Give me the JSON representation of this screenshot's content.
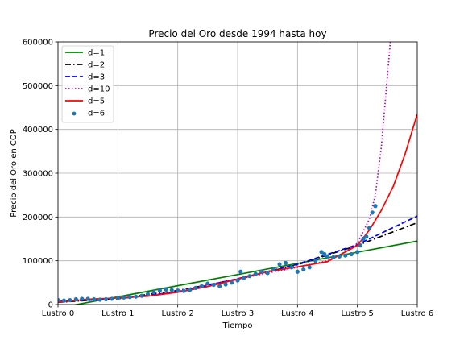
{
  "chart_data": {
    "type": "line",
    "title": "Precio del Oro desde 1994 hasta hoy",
    "xlabel": "Tiempo",
    "ylabel": "Precio del Oro en COP",
    "xlim": [
      0,
      6
    ],
    "ylim": [
      0,
      600000
    ],
    "x_ticks": [
      0,
      1,
      2,
      3,
      4,
      5,
      6
    ],
    "x_tick_labels": [
      "Lustro 0",
      "Lustro 1",
      "Lustro 2",
      "Lustro 3",
      "Lustro 4",
      "Lustro 5",
      "Lustro 6"
    ],
    "y_ticks": [
      0,
      100000,
      200000,
      300000,
      400000,
      500000,
      600000
    ],
    "y_tick_labels": [
      "0",
      "100000",
      "200000",
      "300000",
      "400000",
      "500000",
      "600000"
    ],
    "grid": true,
    "legend_position": "top-left",
    "series": [
      {
        "name": "d=1",
        "kind": "line",
        "color": "#008000",
        "dash": "solid",
        "x": [
          0,
          1,
          2,
          3,
          4,
          5,
          6
        ],
        "y": [
          -8000,
          17500,
          43000,
          68500,
          94000,
          119500,
          145000
        ]
      },
      {
        "name": "d=2",
        "kind": "line",
        "color": "#000000",
        "dash": "dashdot",
        "x": [
          0,
          1,
          2,
          3,
          4,
          5,
          6
        ],
        "y": [
          5000,
          14000,
          32000,
          58000,
          91000,
          135000,
          187000
        ]
      },
      {
        "name": "d=3",
        "kind": "line",
        "color": "#0000ff",
        "dash": "dashed",
        "x": [
          0,
          1,
          2,
          3,
          4,
          5,
          6
        ],
        "y": [
          7000,
          13000,
          29000,
          59000,
          92000,
          137000,
          202000
        ]
      },
      {
        "name": "d=10",
        "kind": "line",
        "color": "#bf00bf",
        "dash": "dotted",
        "x": [
          0,
          0.5,
          1,
          1.5,
          2,
          2.5,
          3,
          3.5,
          4,
          4.5,
          4.8,
          5,
          5.2,
          5.3,
          5.4,
          5.5,
          5.55
        ],
        "y": [
          8000,
          12000,
          14000,
          20000,
          30000,
          45000,
          58000,
          72000,
          85000,
          100000,
          120000,
          140000,
          195000,
          250000,
          360000,
          520000,
          600000
        ]
      },
      {
        "name": "d=5",
        "kind": "line",
        "color": "#ff0000",
        "dash": "solid",
        "x": [
          0,
          0.5,
          1,
          1.5,
          2,
          2.5,
          3,
          3.5,
          4,
          4.5,
          5,
          5.2,
          5.4,
          5.6,
          5.8,
          6
        ],
        "y": [
          5000,
          12000,
          15000,
          19000,
          28000,
          41000,
          58000,
          75000,
          86000,
          98000,
          135000,
          170000,
          215000,
          270000,
          345000,
          435000
        ]
      },
      {
        "name": "d=6",
        "kind": "scatter",
        "color": "#1f77b4",
        "x": [
          0,
          0.1,
          0.2,
          0.3,
          0.4,
          0.5,
          0.6,
          0.7,
          0.8,
          0.9,
          1.0,
          1.1,
          1.2,
          1.3,
          1.4,
          1.5,
          1.6,
          1.7,
          1.8,
          1.9,
          2.0,
          2.1,
          2.2,
          2.3,
          2.4,
          2.5,
          2.6,
          2.7,
          2.8,
          2.9,
          3.0,
          3.05,
          3.1,
          3.2,
          3.3,
          3.4,
          3.5,
          3.6,
          3.7,
          3.8,
          3.9,
          4.0,
          4.1,
          4.2,
          4.3,
          4.4,
          4.45,
          4.5,
          4.6,
          4.7,
          4.8,
          4.9,
          5.0,
          5.05,
          5.1,
          5.15,
          5.2,
          5.25,
          5.3
        ],
        "y": [
          10000,
          9000,
          10000,
          12000,
          13000,
          13000,
          12000,
          11000,
          12000,
          13000,
          15000,
          16000,
          17000,
          18000,
          20000,
          24000,
          28000,
          32000,
          35000,
          33000,
          32000,
          31000,
          33000,
          38000,
          42000,
          48000,
          45000,
          42000,
          46000,
          50000,
          55000,
          75000,
          60000,
          65000,
          70000,
          75000,
          72000,
          80000,
          92000,
          95000,
          85000,
          75000,
          80000,
          85000,
          100000,
          120000,
          115000,
          110000,
          108000,
          110000,
          112000,
          115000,
          120000,
          135000,
          150000,
          155000,
          175000,
          210000,
          225000
        ]
      }
    ]
  }
}
